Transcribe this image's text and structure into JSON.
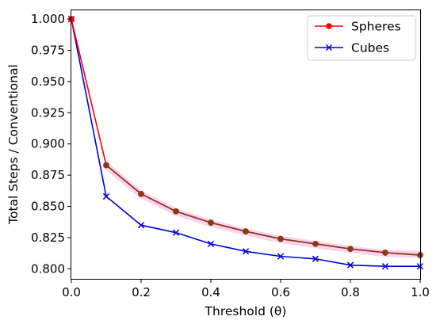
{
  "chart_data": {
    "type": "line",
    "xlabel": "Threshold (θ)",
    "ylabel": "Total Steps / Conventional",
    "xlim": [
      0.0,
      1.0
    ],
    "ylim": [
      0.792,
      1.007
    ],
    "x_ticks": [
      "0.0",
      "0.2",
      "0.4",
      "0.6",
      "0.8",
      "1.0"
    ],
    "y_ticks": [
      "0.800",
      "0.825",
      "0.850",
      "0.875",
      "0.900",
      "0.925",
      "0.950",
      "0.975",
      "1.000"
    ],
    "grid": false,
    "legend_position": "top-right",
    "series": [
      {
        "name": "Spheres",
        "color": "#ff0000",
        "marker": "circle",
        "x": [
          0.0,
          0.1,
          0.2,
          0.3,
          0.4,
          0.5,
          0.6,
          0.7,
          0.8,
          0.9,
          1.0
        ],
        "values": [
          1.0,
          0.883,
          0.86,
          0.846,
          0.837,
          0.83,
          0.824,
          0.82,
          0.816,
          0.813,
          0.811
        ]
      },
      {
        "name": "Cubes",
        "color": "#0000dd",
        "marker": "x",
        "x": [
          0.0,
          0.1,
          0.2,
          0.3,
          0.4,
          0.5,
          0.6,
          0.7,
          0.8,
          0.9,
          1.0
        ],
        "values": [
          1.0,
          0.858,
          0.835,
          0.829,
          0.82,
          0.814,
          0.81,
          0.808,
          0.803,
          0.802,
          0.802
        ]
      }
    ],
    "overlay_series": [
      {
        "color": "#8b3a10",
        "marker": "circle",
        "band_color": "#f5c6f0",
        "x": [
          0.1,
          0.2,
          0.3,
          0.4,
          0.5,
          0.6,
          0.7,
          0.8,
          0.9,
          1.0
        ],
        "values": [
          0.883,
          0.86,
          0.846,
          0.837,
          0.83,
          0.824,
          0.82,
          0.816,
          0.813,
          0.811
        ],
        "band_values": [
          0.8825,
          0.8595,
          0.8455,
          0.8365,
          0.8295,
          0.8235,
          0.8195,
          0.8155,
          0.8125,
          0.8115
        ]
      }
    ]
  }
}
